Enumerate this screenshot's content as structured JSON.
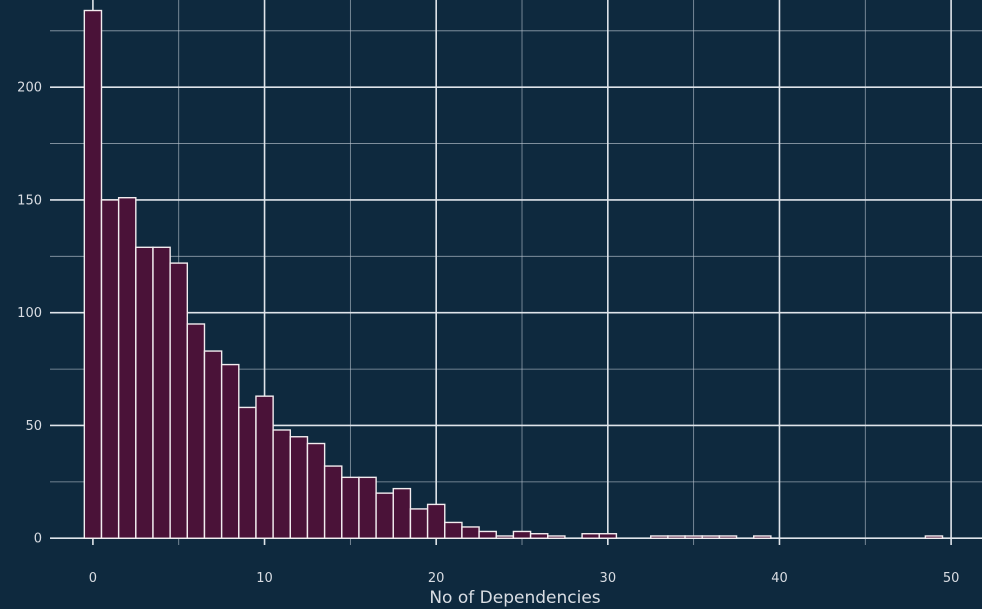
{
  "chart_data": {
    "type": "bar",
    "subtype": "histogram",
    "title": "",
    "xlabel": "No of Dependencies",
    "ylabel": "",
    "xlim": [
      -2.5,
      51.8
    ],
    "ylim": [
      -3,
      236
    ],
    "x_ticks": [
      0,
      10,
      20,
      30,
      40,
      50
    ],
    "y_ticks": [
      0,
      50,
      100,
      150,
      200
    ],
    "grid": true,
    "bin_width": 1,
    "bins": [
      {
        "x": 0,
        "count": 234
      },
      {
        "x": 1,
        "count": 150
      },
      {
        "x": 2,
        "count": 151
      },
      {
        "x": 3,
        "count": 129
      },
      {
        "x": 4,
        "count": 129
      },
      {
        "x": 5,
        "count": 122
      },
      {
        "x": 6,
        "count": 95
      },
      {
        "x": 7,
        "count": 83
      },
      {
        "x": 8,
        "count": 77
      },
      {
        "x": 9,
        "count": 58
      },
      {
        "x": 10,
        "count": 63
      },
      {
        "x": 11,
        "count": 48
      },
      {
        "x": 12,
        "count": 45
      },
      {
        "x": 13,
        "count": 42
      },
      {
        "x": 14,
        "count": 32
      },
      {
        "x": 15,
        "count": 27
      },
      {
        "x": 16,
        "count": 27
      },
      {
        "x": 17,
        "count": 20
      },
      {
        "x": 18,
        "count": 22
      },
      {
        "x": 19,
        "count": 13
      },
      {
        "x": 20,
        "count": 15
      },
      {
        "x": 21,
        "count": 7
      },
      {
        "x": 22,
        "count": 5
      },
      {
        "x": 23,
        "count": 3
      },
      {
        "x": 24,
        "count": 1
      },
      {
        "x": 25,
        "count": 3
      },
      {
        "x": 26,
        "count": 2
      },
      {
        "x": 27,
        "count": 1
      },
      {
        "x": 29,
        "count": 2
      },
      {
        "x": 30,
        "count": 2
      },
      {
        "x": 33,
        "count": 1
      },
      {
        "x": 34,
        "count": 1
      },
      {
        "x": 35,
        "count": 1
      },
      {
        "x": 36,
        "count": 1
      },
      {
        "x": 37,
        "count": 1
      },
      {
        "x": 39,
        "count": 1
      },
      {
        "x": 49,
        "count": 1
      }
    ],
    "colors": {
      "background": "#0e293e",
      "bar_fill": "#4a1238",
      "bar_edge": "#f2ecef",
      "grid": "#dfe4ea",
      "text": "#d9dde3"
    }
  }
}
